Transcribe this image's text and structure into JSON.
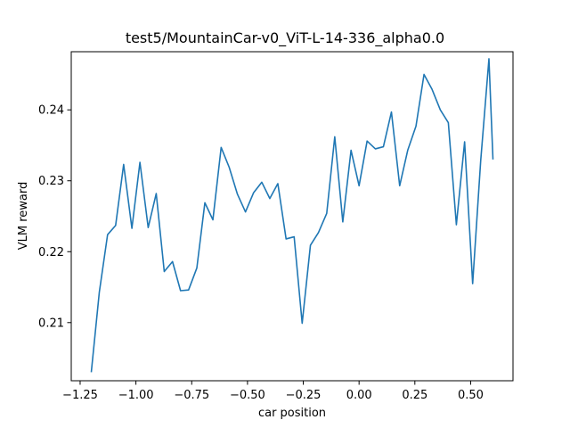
{
  "chart_data": {
    "type": "line",
    "title": "test5/MountainCar-v0_ViT-L-14-336_alpha0.0",
    "xlabel": "car position",
    "ylabel": "VLM reward",
    "xlim": [
      -1.2898,
      0.6898
    ],
    "ylim": [
      0.2018,
      0.2482
    ],
    "xticks": [
      -1.25,
      -1.0,
      -0.75,
      -0.5,
      -0.25,
      0.0,
      0.25,
      0.5
    ],
    "xtick_labels": [
      "−1.25",
      "−1.00",
      "−0.75",
      "−0.50",
      "−0.25",
      "0.00",
      "0.25",
      "0.50"
    ],
    "yticks": [
      0.21,
      0.22,
      0.23,
      0.24
    ],
    "ytick_labels": [
      "0.21",
      "0.22",
      "0.23",
      "0.24"
    ],
    "grid": false,
    "legend": "none",
    "series": [
      {
        "color": "#1f77b4",
        "x": [
          -1.2,
          -1.164,
          -1.127,
          -1.091,
          -1.055,
          -1.018,
          -0.982,
          -0.945,
          -0.909,
          -0.873,
          -0.836,
          -0.8,
          -0.764,
          -0.727,
          -0.691,
          -0.655,
          -0.618,
          -0.582,
          -0.545,
          -0.509,
          -0.473,
          -0.436,
          -0.4,
          -0.364,
          -0.327,
          -0.291,
          -0.255,
          -0.218,
          -0.182,
          -0.145,
          -0.109,
          -0.073,
          -0.036,
          0.0,
          0.036,
          0.073,
          0.109,
          0.145,
          0.182,
          0.218,
          0.255,
          0.291,
          0.327,
          0.364,
          0.4,
          0.436,
          0.473,
          0.509,
          0.545,
          0.582,
          0.6
        ],
        "y": [
          0.203,
          0.2143,
          0.2224,
          0.2237,
          0.2323,
          0.2233,
          0.2326,
          0.2234,
          0.2282,
          0.2172,
          0.2186,
          0.2145,
          0.2146,
          0.2177,
          0.2269,
          0.2245,
          0.2347,
          0.2319,
          0.2281,
          0.2256,
          0.2283,
          0.2298,
          0.2275,
          0.2296,
          0.2218,
          0.2221,
          0.2099,
          0.2209,
          0.2227,
          0.2254,
          0.2362,
          0.2242,
          0.2343,
          0.2293,
          0.2356,
          0.2345,
          0.2348,
          0.2397,
          0.2293,
          0.2343,
          0.2377,
          0.245,
          0.2429,
          0.24,
          0.2382,
          0.2238,
          0.2355,
          0.2155,
          0.2328,
          0.2472,
          0.233
        ]
      }
    ]
  }
}
